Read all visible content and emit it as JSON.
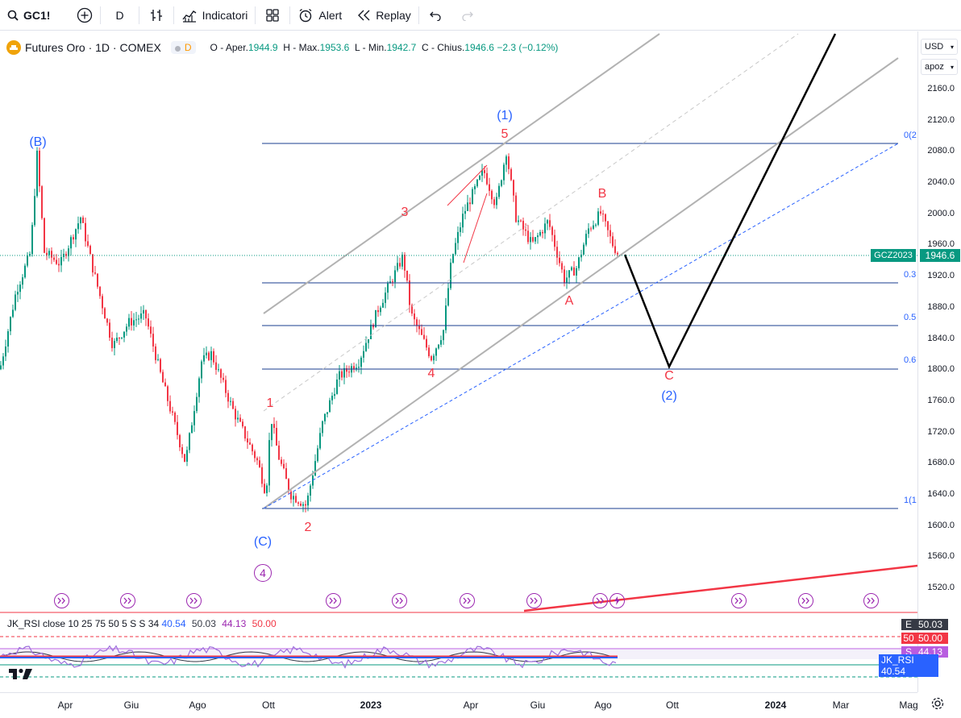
{
  "toolbar": {
    "symbol": "GC1!",
    "interval": "D",
    "indicators_label": "Indicatori",
    "alert_label": "Alert",
    "replay_label": "Replay"
  },
  "legend": {
    "title": "Futures Oro · 1D · COMEX",
    "badge": "D",
    "o_label": "O - Aper.",
    "o_value": "1944.9",
    "h_label": "H - Max.",
    "h_value": "1953.6",
    "l_label": "L - Min.",
    "l_value": "1942.7",
    "c_label": "C - Chius.",
    "c_value": "1946.6",
    "change": "−2.3 (−0.12%)"
  },
  "price_axis": {
    "currency": "USD",
    "mode": "apoz",
    "ticks": [
      "2160.0",
      "2120.0",
      "2080.0",
      "2040.0",
      "2000.0",
      "1960.0",
      "1920.0",
      "1880.0",
      "1840.0",
      "1800.0",
      "1760.0",
      "1720.0",
      "1680.0",
      "1640.0",
      "1600.0",
      "1560.0",
      "1520.0"
    ],
    "current_price": "1946.6",
    "symbol_tag": "GCZ2023"
  },
  "fib_labels": [
    "0(2",
    "0.3",
    "0.5",
    "0.6",
    "1(1"
  ],
  "waves": {
    "B_cap": "(B)",
    "C_cap": "(C)",
    "four_circle": "4",
    "one_p": "(1)",
    "five": "5",
    "three": "3",
    "one": "1",
    "two": "2",
    "four": "4",
    "a": "A",
    "b": "B",
    "c": "C",
    "two_p": "(2)"
  },
  "rsi": {
    "legend": "JK_RSI close 10 25 75 50 5 S S 34",
    "v1": "40.54",
    "v2": "50.03",
    "v3": "44.13",
    "v4": "50.00",
    "tags": [
      {
        "k": "E",
        "v": "50.03",
        "color": "#363a45"
      },
      {
        "k": "50",
        "v": "50.00",
        "color": "#f23645"
      },
      {
        "k": "S",
        "v": "44.13",
        "color": "#b85ce0"
      },
      {
        "k": "",
        "v": "JK_RSI 40.54",
        "color": "#2962ff"
      }
    ]
  },
  "time_axis": [
    "Apr",
    "Giu",
    "Ago",
    "Ott",
    "2023",
    "Apr",
    "Giu",
    "Ago",
    "Ott",
    "2024",
    "Mar",
    "Mag"
  ],
  "colors": {
    "up": "#089981",
    "down": "#f23645",
    "fib": "#1a3c8f",
    "channel": "#b2b2b2",
    "wave_blue": "#2962ff",
    "wave_red": "#f23645"
  }
}
